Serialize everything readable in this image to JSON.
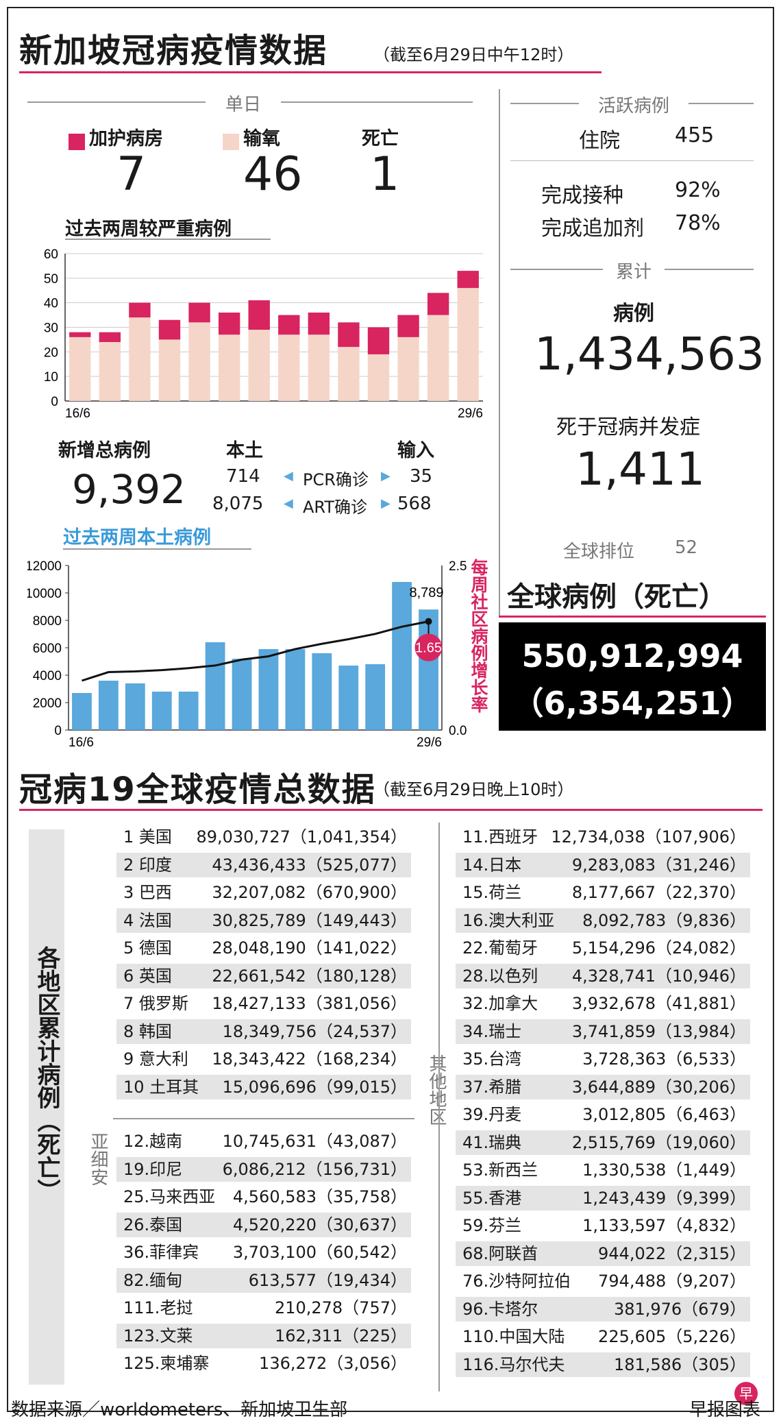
{
  "header": {
    "title": "新加坡冠病疫情数据",
    "subtitle": "（截至6月29日中午12时）"
  },
  "daily": {
    "heading": "单日",
    "icu_label": "加护病房",
    "icu_value": "7",
    "oxygen_label": "输氧",
    "oxygen_value": "46",
    "death_label": "死亡",
    "death_value": "1"
  },
  "colors": {
    "accent": "#d8245f",
    "bar_light": "#f6d5c9",
    "bar_blue": "#5aa8dc",
    "black_box": "#000000"
  },
  "severe_chart_title": "过去两周较严重病例",
  "local_chart_title": "过去两周本土病例",
  "new_cases": {
    "total_label": "新增总病例",
    "total_value": "9,392",
    "local_label": "本土",
    "import_label": "输入",
    "pcr_local": "714",
    "pcr_label": "PCR确诊",
    "pcr_import": "35",
    "art_local": "8,075",
    "art_label": "ART确诊",
    "art_import": "568"
  },
  "active": {
    "heading": "活跃病例",
    "hosp_label": "住院",
    "hosp_value": "455",
    "vacc_label": "完成接种",
    "vacc_value": "92%",
    "booster_label": "完成追加剂",
    "booster_value": "78%"
  },
  "cumulative": {
    "heading": "累计",
    "cases_label": "病例",
    "cases_value": "1,434,563",
    "deaths_label": "死于冠病并发症",
    "deaths_value": "1,411",
    "rank_label": "全球排位",
    "rank_value": "52"
  },
  "global": {
    "heading": "全球病例（死亡）",
    "cases": "550,912,994",
    "deaths": "（6,354,251）"
  },
  "table": {
    "title": "冠病19全球疫情总数据",
    "subtitle": "（截至6月29日晚上10时）",
    "side_label": "各地区累计病例（死亡）",
    "asia_label": "亚细安",
    "other_label": "其他地区",
    "top10": [
      [
        "1 美国",
        "89,030,727（1,041,354）"
      ],
      [
        "2 印度",
        "43,436,433（525,077）"
      ],
      [
        "3 巴西",
        "32,207,082（670,900）"
      ],
      [
        "4 法国",
        "30,825,789（149,443）"
      ],
      [
        "5 德国",
        "28,048,190（141,022）"
      ],
      [
        "6 英国",
        "22,661,542（180,128）"
      ],
      [
        "7 俄罗斯",
        "18,427,133（381,056）"
      ],
      [
        "8 韩国",
        "18,349,756（24,537）"
      ],
      [
        "9 意大利",
        "18,343,422（168,234）"
      ],
      [
        "10 土耳其",
        "15,096,696（99,015）"
      ]
    ],
    "asean": [
      [
        "12.越南",
        "10,745,631（43,087）"
      ],
      [
        "19.印尼",
        "6,086,212（156,731）"
      ],
      [
        "25.马来西亚",
        "4,560,583（35,758）"
      ],
      [
        "26.泰国",
        "4,520,220（30,637）"
      ],
      [
        "36.菲律宾",
        "3,703,100（60,542）"
      ],
      [
        "82.缅甸",
        "613,577（19,434）"
      ],
      [
        "111.老挝",
        "210,278（757）"
      ],
      [
        "123.文莱",
        "162,311（225）"
      ],
      [
        "125.柬埔寨",
        "136,272（3,056）"
      ]
    ],
    "others": [
      [
        "11.西班牙",
        "12,734,038（107,906）"
      ],
      [
        "14.日本",
        "9,283,083（31,246）"
      ],
      [
        "15.荷兰",
        "8,177,667（22,370）"
      ],
      [
        "16.澳大利亚",
        "8,092,783（9,836）"
      ],
      [
        "22.葡萄牙",
        "5,154,296（24,082）"
      ],
      [
        "28.以色列",
        "4,328,741（10,946）"
      ],
      [
        "32.加拿大",
        "3,932,678（41,881）"
      ],
      [
        "34.瑞士",
        "3,741,859（13,984）"
      ],
      [
        "35.台湾",
        "3,728,363（6,533）"
      ],
      [
        "37.希腊",
        "3,644,889（30,206）"
      ],
      [
        "39.丹麦",
        "3,012,805（6,463）"
      ],
      [
        "41.瑞典",
        "2,515,769（19,060）"
      ],
      [
        "53.新西兰",
        "1,330,538（1,449）"
      ],
      [
        "55.香港",
        "1,243,439（9,399）"
      ],
      [
        "59.芬兰",
        "1,133,597（4,832）"
      ],
      [
        "68.阿联酋",
        "944,022（2,315）"
      ],
      [
        "76.沙特阿拉伯",
        "794,488（9,207）"
      ],
      [
        "96.卡塔尔",
        "381,976（679）"
      ],
      [
        "110.中国大陆",
        "225,605（5,226）"
      ],
      [
        "116.马尔代夫",
        "181,586（305）"
      ]
    ]
  },
  "footer": {
    "source": "数据来源／worldometers、新加坡卫生部",
    "credit": "早报图表",
    "logo": "早"
  },
  "chart_data": [
    {
      "type": "bar",
      "stacked": true,
      "title": "过去两周较严重病例",
      "x_tick_labels": [
        "16/6",
        "29/6"
      ],
      "y_ticks": [
        0,
        10,
        20,
        30,
        40,
        50,
        60
      ],
      "ylim": [
        0,
        60
      ],
      "series": [
        {
          "name": "输氧",
          "color": "#f6d5c9",
          "values": [
            26,
            24,
            34,
            25,
            32,
            27,
            29,
            27,
            27,
            22,
            19,
            26,
            35,
            46
          ]
        },
        {
          "name": "加护病房",
          "color": "#d8245f",
          "values": [
            2,
            4,
            6,
            8,
            8,
            9,
            12,
            8,
            9,
            10,
            11,
            9,
            9,
            7
          ]
        }
      ]
    },
    {
      "type": "bar",
      "title": "过去两周本土病例",
      "x_tick_labels": [
        "16/6",
        "29/6"
      ],
      "y_ticks": [
        0,
        2000,
        4000,
        6000,
        8000,
        10000,
        12000
      ],
      "ylim": [
        0,
        12000
      ],
      "y2_label": "每周社区病例增长率",
      "y2_ticks": [
        0.0,
        2.5
      ],
      "y2lim": [
        0,
        2.5
      ],
      "values": [
        2700,
        3600,
        3400,
        2800,
        2800,
        6400,
        5200,
        5900,
        5900,
        5600,
        4700,
        4800,
        10800,
        8789
      ],
      "line_values": [
        0.75,
        0.88,
        0.89,
        0.91,
        0.94,
        0.98,
        1.07,
        1.12,
        1.23,
        1.31,
        1.38,
        1.46,
        1.57,
        1.65
      ],
      "annotations": {
        "last_bar": "8,789",
        "last_ratio": "1.65"
      }
    }
  ]
}
